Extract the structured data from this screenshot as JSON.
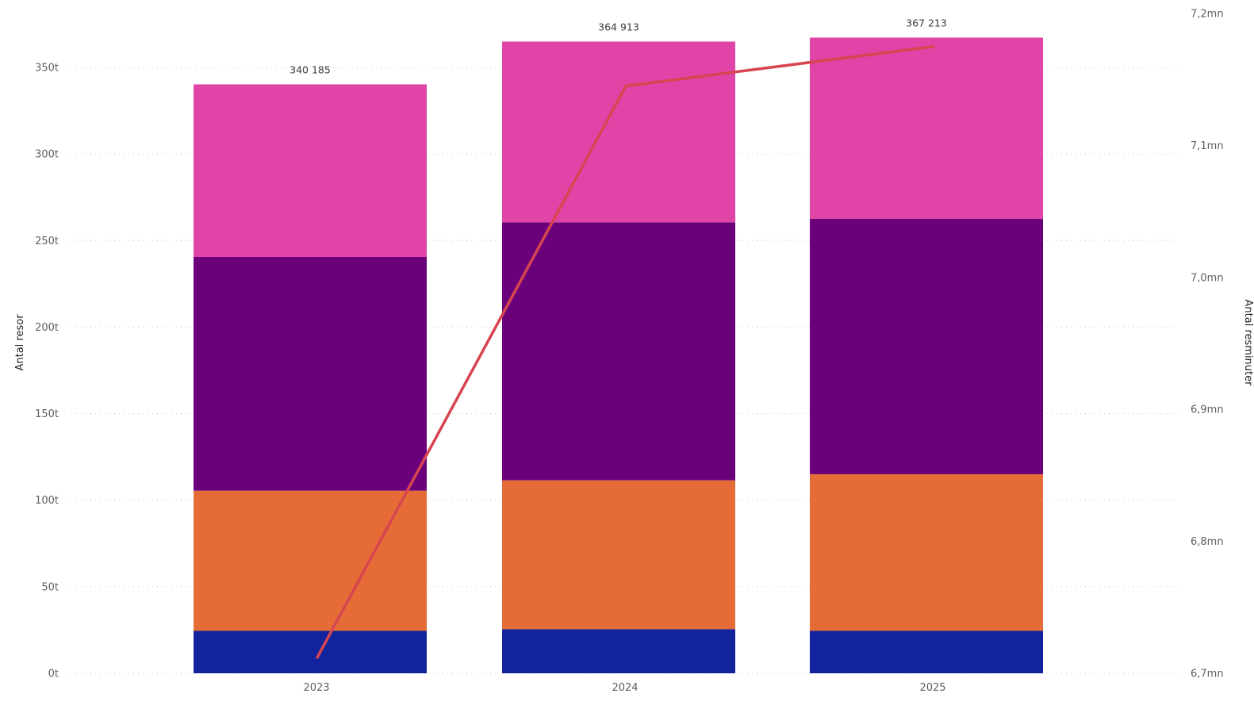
{
  "chart_data": {
    "type": "bar",
    "stacked": true,
    "categories": [
      "2023",
      "2024",
      "2025"
    ],
    "totals": [
      340185,
      364913,
      367213
    ],
    "total_labels": [
      "340 185",
      "364 913",
      "367 213"
    ],
    "series": [
      {
        "color": "#12239e",
        "values": [
          24500,
          25500,
          24500
        ]
      },
      {
        "color": "#e66c37",
        "values": [
          81000,
          86000,
          90500
        ]
      },
      {
        "color": "#6b007b",
        "values": [
          135000,
          149000,
          147500
        ]
      },
      {
        "color": "#e044a7",
        "values": [
          99685,
          104413,
          104713
        ]
      }
    ],
    "line": {
      "color": "#d64550",
      "axis": "right",
      "values": [
        6712000,
        7145000,
        7175000
      ]
    },
    "ylabel": "Antal resor",
    "ylim": [
      0,
      360000
    ],
    "yticks": [
      0,
      50000,
      100000,
      150000,
      200000,
      250000,
      300000,
      350000
    ],
    "ytick_labels": [
      "0t",
      "50t",
      "100t",
      "150t",
      "200t",
      "250t",
      "300t",
      "350t"
    ],
    "y2label": "Antal resminuter",
    "y2lim": [
      6700000,
      7200000
    ],
    "y2ticks": [
      6700000,
      6800000,
      6900000,
      7000000,
      7100000,
      7200000
    ],
    "y2tick_labels": [
      "6,7mn",
      "6,8mn",
      "6,9mn",
      "7,0mn",
      "7,1mn",
      "7,2mn"
    ],
    "grid": true
  }
}
